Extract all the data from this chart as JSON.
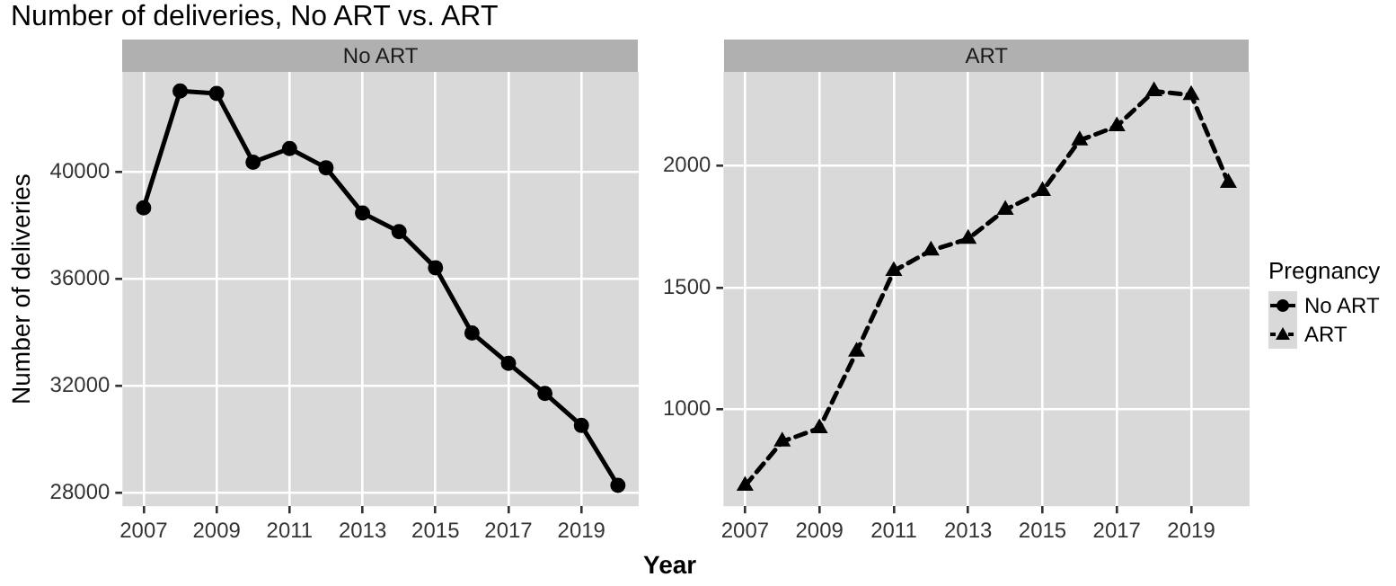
{
  "chart_data": [
    {
      "type": "line",
      "title": "Number of deliveries, No ART vs. ART",
      "subtitle": "No ART",
      "ylabel": "Number of deliveries",
      "xlabel": "Year",
      "x": [
        2007,
        2008,
        2009,
        2010,
        2011,
        2012,
        2013,
        2014,
        2015,
        2016,
        2017,
        2018,
        2019,
        2020
      ],
      "series": [
        {
          "name": "No ART",
          "color": "#000000",
          "values": [
            38670,
            43040,
            42950,
            40380,
            40890,
            40170,
            38480,
            37780,
            36430,
            33990,
            32850,
            31730,
            30530,
            28290
          ]
        }
      ],
      "xlim": [
        2006.42,
        2020.57
      ],
      "xticks": [
        2007,
        2009,
        2011,
        2013,
        2015,
        2017,
        2019
      ],
      "ylim": [
        27510,
        43755
      ],
      "yticks": [
        28000,
        32000,
        36000,
        40000
      ],
      "grid": true,
      "marker": "circle",
      "line_style": "solid",
      "legend": "right"
    },
    {
      "type": "line",
      "subtitle": "ART",
      "legend_title": "Pregnancy",
      "x": [
        2007,
        2008,
        2009,
        2010,
        2011,
        2012,
        2013,
        2014,
        2015,
        2016,
        2017,
        2018,
        2019,
        2020
      ],
      "series": [
        {
          "name": "ART",
          "color": "#000000",
          "values": [
            687,
            868,
            923,
            1237,
            1568,
            1652,
            1700,
            1819,
            1896,
            2104,
            2162,
            2306,
            2290,
            1930
          ]
        }
      ],
      "xlim": [
        2006.42,
        2020.57
      ],
      "xticks": [
        2007,
        2009,
        2011,
        2013,
        2015,
        2017,
        2019
      ],
      "ylim": [
        603,
        2385
      ],
      "yticks": [
        1000,
        1500,
        2000
      ],
      "grid": true,
      "marker": "triangle",
      "line_style": "dashed",
      "legend": "right"
    }
  ]
}
